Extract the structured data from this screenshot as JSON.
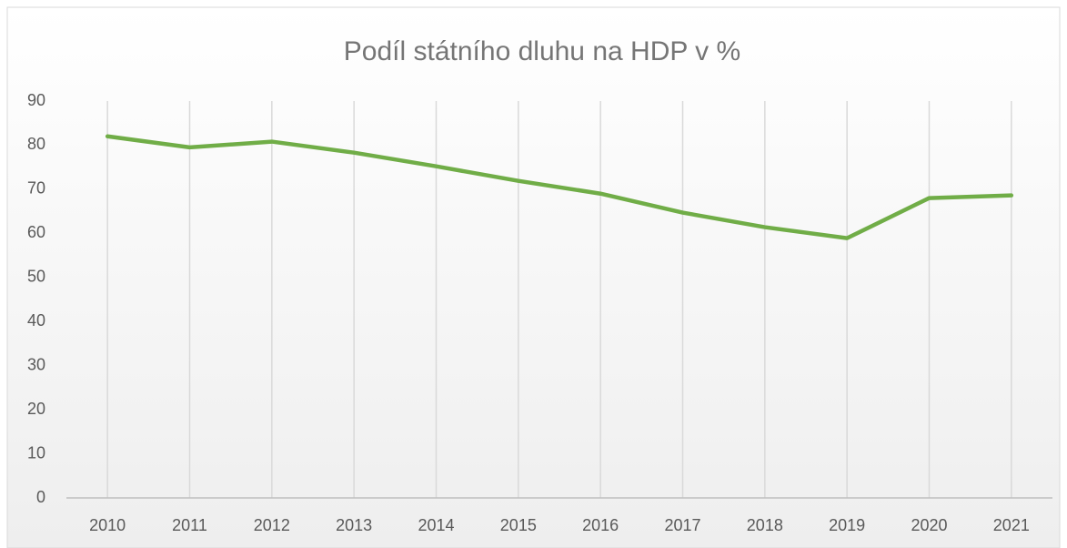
{
  "chart_data": {
    "type": "line",
    "title": "Podíl státního dluhu na HDP v %",
    "categories": [
      "2010",
      "2011",
      "2012",
      "2013",
      "2014",
      "2015",
      "2016",
      "2017",
      "2018",
      "2019",
      "2020",
      "2021"
    ],
    "series": [
      {
        "name": "Podíl státního dluhu na HDP v %",
        "color": "#70ad47",
        "values": [
          82.0,
          79.5,
          80.8,
          78.3,
          75.2,
          71.9,
          69.0,
          64.7,
          61.4,
          58.9,
          68.0,
          68.6
        ]
      }
    ],
    "ylim": [
      0,
      90
    ],
    "yticks": [
      0,
      10,
      20,
      30,
      40,
      50,
      60,
      70,
      80,
      90
    ],
    "grid": true
  }
}
